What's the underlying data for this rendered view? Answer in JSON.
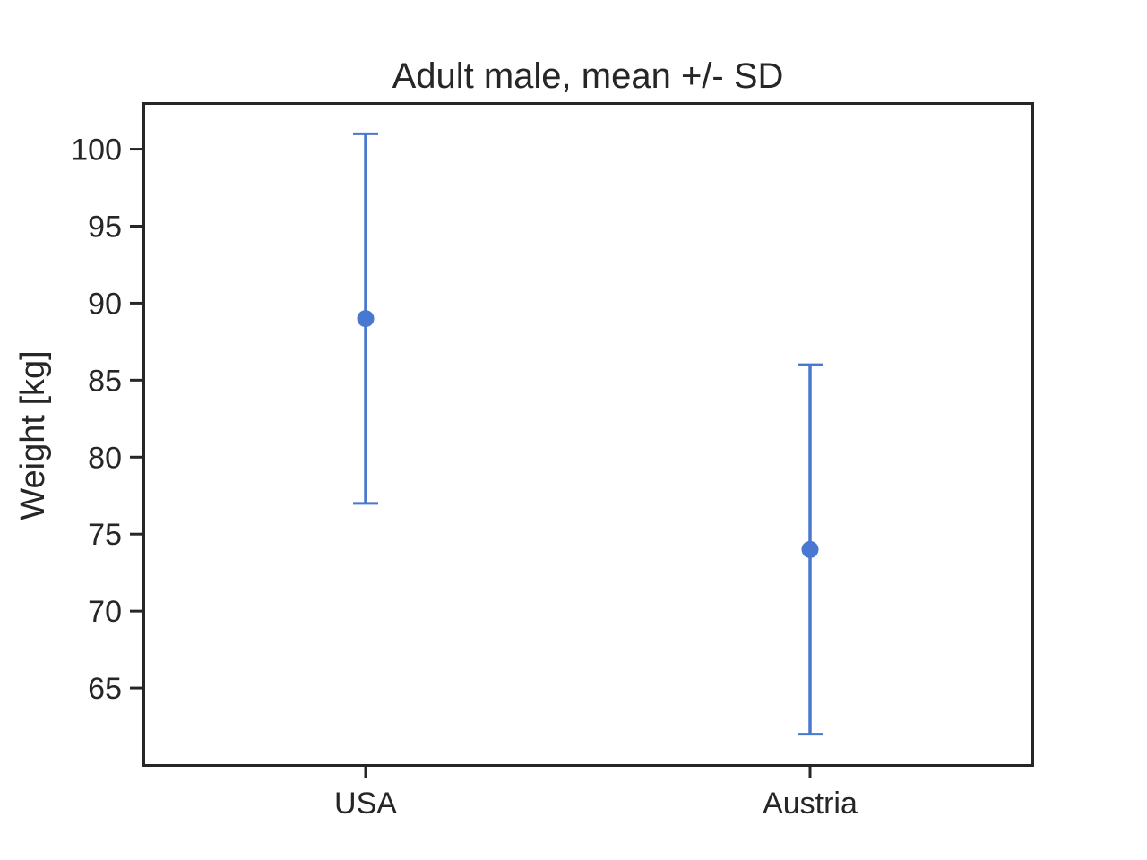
{
  "chart_data": {
    "type": "errorbar",
    "title": "Adult male, mean +/- SD",
    "xlabel": "",
    "ylabel": "Weight [kg]",
    "categories": [
      "USA",
      "Austria"
    ],
    "series": [
      {
        "values": [
          89,
          74
        ],
        "error": [
          12,
          12
        ],
        "color": "#4878cf"
      }
    ],
    "ylim": [
      60,
      103
    ],
    "yticks": [
      65,
      70,
      75,
      80,
      85,
      90,
      95,
      100
    ],
    "grid": false
  }
}
